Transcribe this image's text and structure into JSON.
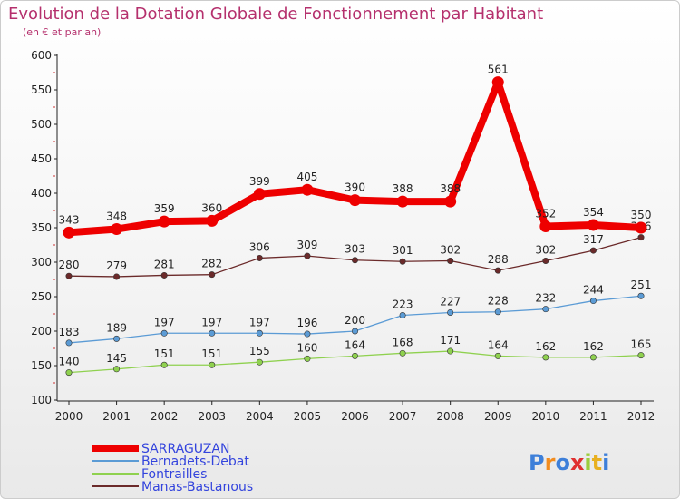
{
  "chart_data": {
    "type": "line",
    "title": "Evolution de la Dotation Globale de Fonctionnement par Habitant",
    "subtitle": "(en € et par an)",
    "xlabel": "",
    "ylabel": "",
    "ylim": [
      100,
      600
    ],
    "ystep": 50,
    "grid": false,
    "legend_position": "bottom-left",
    "categories": [
      "2000",
      "2001",
      "2002",
      "2003",
      "2004",
      "2005",
      "2006",
      "2007",
      "2008",
      "2009",
      "2010",
      "2011",
      "2012"
    ],
    "series": [
      {
        "name": "SARRAGUZAN",
        "color": "#ee0000",
        "weight": "thick",
        "values": [
          343,
          348,
          359,
          360,
          399,
          405,
          390,
          388,
          388,
          561,
          352,
          354,
          350
        ],
        "labels": [
          "343",
          "348",
          "359",
          "360",
          "399",
          "405",
          "390",
          "388",
          "388",
          "561",
          "352",
          "354",
          "350"
        ]
      },
      {
        "name": "Bernadets-Debat",
        "color": "#5b9bd5",
        "weight": "thin",
        "values": [
          183,
          189,
          197,
          197,
          197,
          196,
          200,
          223,
          227,
          228,
          232,
          244,
          251
        ],
        "labels": [
          "183",
          "189",
          "197",
          "197",
          "197",
          "196",
          "200",
          "223",
          "227",
          "228",
          "232",
          "244",
          "251"
        ]
      },
      {
        "name": "Fontrailles",
        "color": "#8fd14f",
        "weight": "thin",
        "values": [
          140,
          145,
          151,
          151,
          155,
          160,
          164,
          168,
          171,
          164,
          162,
          162,
          165
        ],
        "labels": [
          "140",
          "145",
          "151",
          "151",
          "155",
          "160",
          "164",
          "168",
          "171",
          "164",
          "162",
          "162",
          "165"
        ]
      },
      {
        "name": "Manas-Bastanous",
        "color": "#6b2a2a",
        "weight": "thin",
        "values": [
          280,
          279,
          281,
          282,
          306,
          309,
          303,
          301,
          302,
          288,
          302,
          317,
          336
        ],
        "labels": [
          "280",
          "279",
          "281",
          "282",
          "306",
          "309",
          "303",
          "301",
          "302",
          "288",
          "302",
          "317",
          "336"
        ]
      }
    ]
  },
  "logo": {
    "text": "Proxiti",
    "letter_colors": [
      "#3d7fd9",
      "#f28c1e",
      "#3d7fd9",
      "#e03030",
      "#9ccc3c",
      "#e8b020",
      "#3d7fd9"
    ]
  }
}
